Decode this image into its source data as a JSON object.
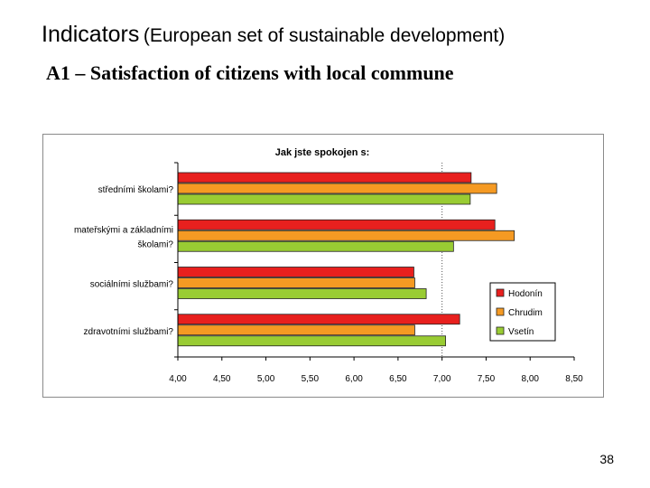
{
  "slide": {
    "title_main": "Indicators",
    "title_paren": "(European set of sustainable development)",
    "subtitle": "A1 – Satisfaction of citizens with local commune",
    "page_number": "38"
  },
  "chart_data": {
    "type": "bar",
    "orientation": "horizontal",
    "title": "Jak jste spokojen s:",
    "categories": [
      [
        "středními školami?"
      ],
      [
        "mateřskými a základními",
        "školami?"
      ],
      [
        "sociálními službami?"
      ],
      [
        "zdravotními službami?"
      ]
    ],
    "series": [
      {
        "name": "Hodonín",
        "color": "#e8201e",
        "values": [
          7.33,
          7.6,
          6.68,
          7.2
        ]
      },
      {
        "name": "Chrudim",
        "color": "#f59a23",
        "values": [
          7.62,
          7.82,
          6.69,
          6.69
        ]
      },
      {
        "name": "Vsetín",
        "color": "#99cc33",
        "values": [
          7.32,
          7.13,
          6.82,
          7.04
        ]
      }
    ],
    "xlim": [
      4.0,
      8.5
    ],
    "xticks": [
      "4,00",
      "4,50",
      "5,00",
      "5,50",
      "6,00",
      "6,50",
      "7,00",
      "7,50",
      "8,00",
      "8,50"
    ],
    "grid": false,
    "legend_position": "right"
  }
}
